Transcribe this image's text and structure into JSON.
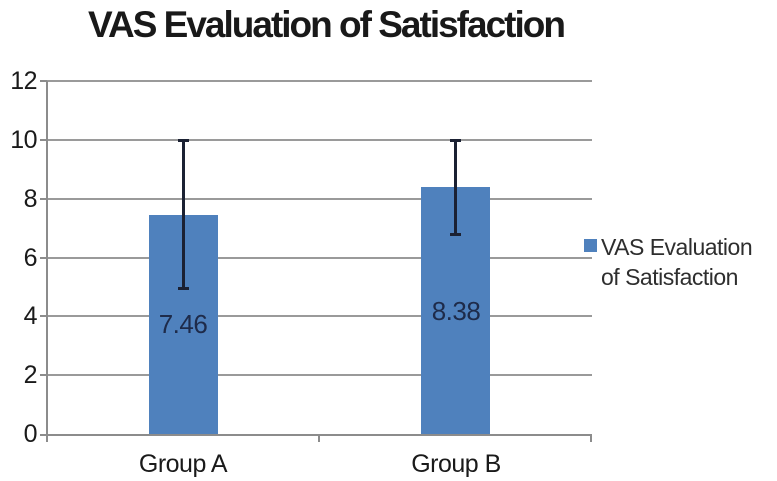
{
  "title": "VAS Evaluation of Satisfaction",
  "chart_data": {
    "type": "bar",
    "title": "VAS Evaluation of Satisfaction",
    "categories": [
      "Group A",
      "Group B"
    ],
    "series": [
      {
        "name": "VAS Evaluation of Satisfaction",
        "values": [
          7.46,
          8.38
        ],
        "errors": [
          2.54,
          1.62
        ],
        "data_labels": [
          "7.46",
          "8.38"
        ]
      }
    ],
    "ylabel": "",
    "xlabel": "",
    "ylim": [
      0,
      12
    ],
    "yticks": [
      0,
      2,
      4,
      6,
      8,
      10,
      12
    ],
    "grid": "horizontal",
    "legend_position": "right",
    "legend_label": "VAS Evaluation of Satisfaction"
  },
  "colors": {
    "bar": "#4F81BD",
    "gridline": "#9a9a9a",
    "axis": "#8c8c8c",
    "error_bar": "#1b2133",
    "title_text": "#191919",
    "tick_text": "#1a1a1a",
    "data_label_text": "#1e2b4a",
    "legend_text": "#2e2e2e",
    "background": "#ffffff"
  }
}
